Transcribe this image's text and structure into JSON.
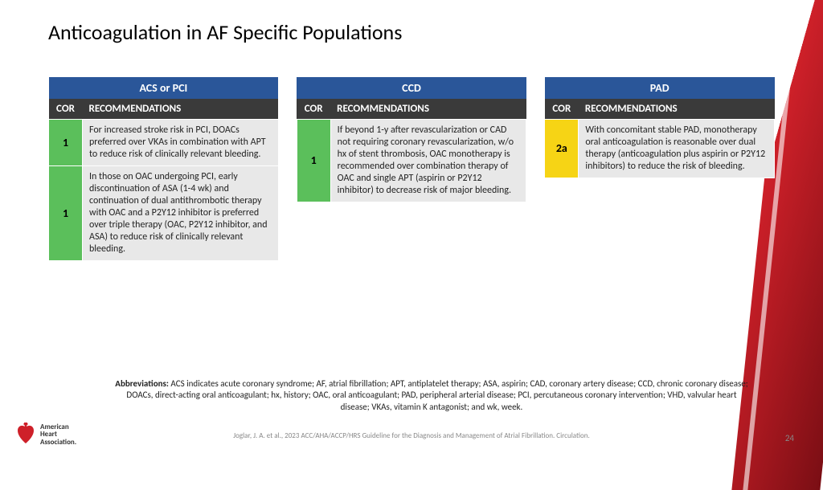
{
  "title": "Anticoagulation in AF Specific Populations",
  "cor_colors": {
    "1": "#5bbf5b",
    "2a": "#f6d415"
  },
  "header_bg": "#2a5699",
  "subheader_bg": "#3a3a3a",
  "rec_bg": "#e8e8e8",
  "col_cor": "COR",
  "col_rec": "RECOMMENDATIONS",
  "tables": [
    {
      "title": "ACS or PCI",
      "rows": [
        {
          "cor": "1",
          "text": "For increased stroke risk in PCI, DOACs preferred over VKAs in combination with APT to reduce risk of clinically relevant bleeding."
        },
        {
          "cor": "1",
          "text": "In those on OAC undergoing PCI, early discontinuation of ASA (1-4 wk) and continuation of dual antithrombotic therapy with OAC and a P2Y12 inhibitor is preferred over triple therapy (OAC, P2Y12 inhibitor, and ASA) to reduce risk of clinically relevant bleeding."
        }
      ]
    },
    {
      "title": "CCD",
      "rows": [
        {
          "cor": "1",
          "text": "If beyond 1-y after revascularization or CAD not requiring coronary revascularization, w/o hx of stent thrombosis, OAC monotherapy is recommended over combination therapy of OAC and single APT (aspirin or P2Y12 inhibitor) to decrease risk of major bleeding."
        }
      ]
    },
    {
      "title": "PAD",
      "rows": [
        {
          "cor": "2a",
          "text": "With concomitant stable PAD, monotherapy oral anticoagulation is reasonable over dual therapy (anticoagulation plus aspirin or P2Y12 inhibitors) to reduce the risk of bleeding."
        }
      ]
    }
  ],
  "abbrev_label": "Abbreviations:",
  "abbrev_text": " ACS indicates acute coronary syndrome; AF, atrial fibrillation; APT, antiplatelet therapy; ASA, aspirin; CAD, coronary artery disease; CCD, chronic coronary disease; DOACs, direct-acting oral anticoagulant; hx, history; OAC, oral anticoagulant; PAD, peripheral arterial disease; PCI, percutaneous coronary intervention; VHD, valvular heart disease; VKAs, vitamin K antagonist; and wk, week.",
  "citation": "Joglar, J. A. et al., 2023 ACC/AHA/ACCP/HRS Guideline for the Diagnosis and Management of Atrial Fibrillation. Circulation.",
  "page_number": "24",
  "logo_line1": "American",
  "logo_line2": "Heart",
  "logo_line3": "Association."
}
